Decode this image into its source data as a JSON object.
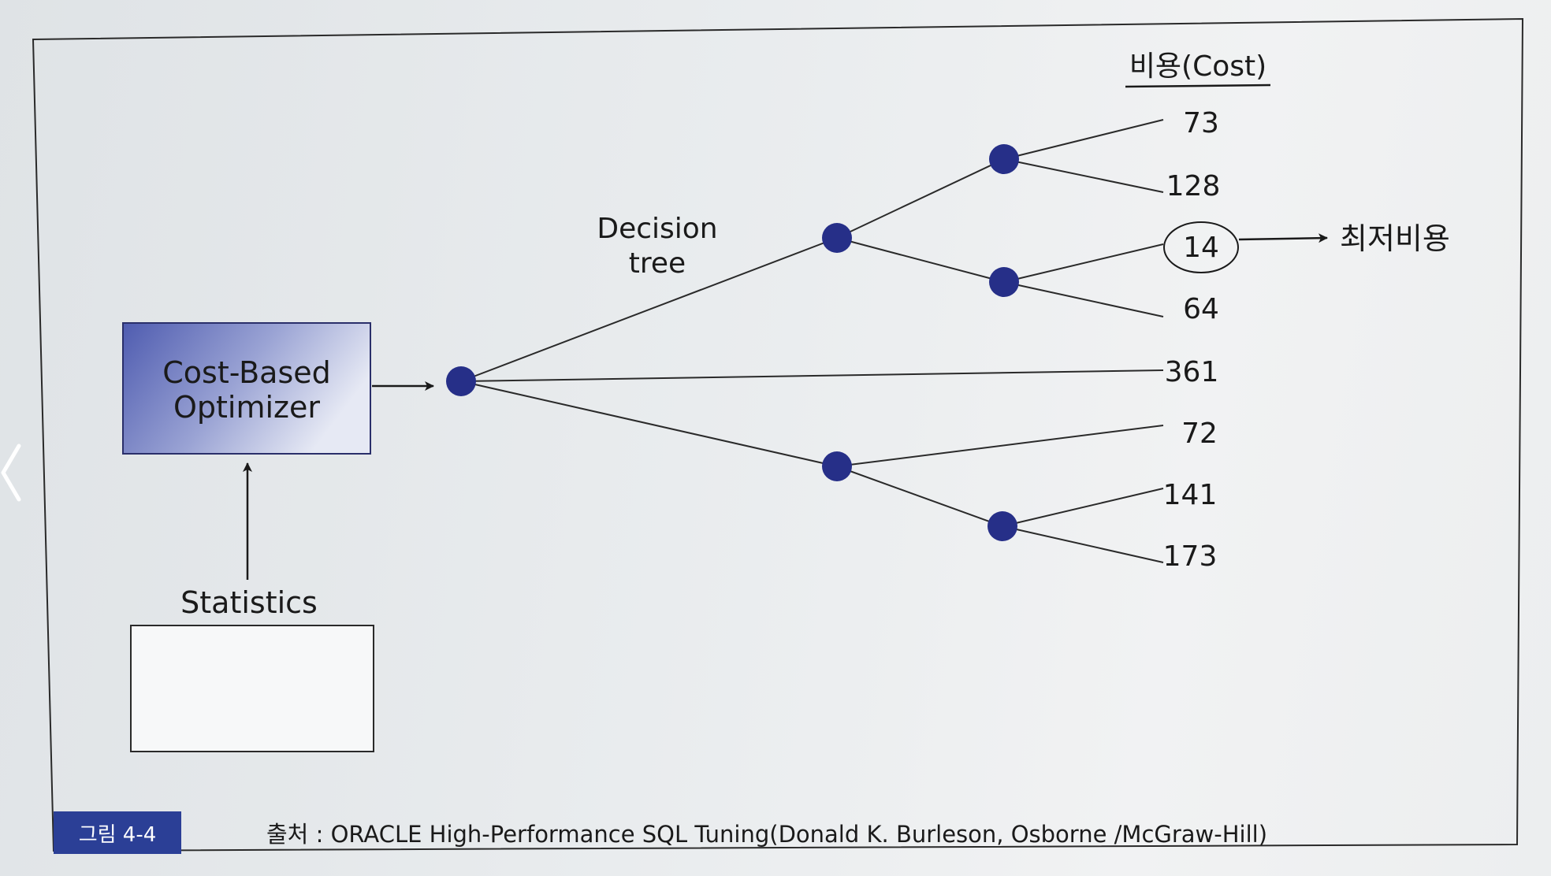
{
  "diagram": {
    "optimizer_line1": "Cost-Based",
    "optimizer_line2": "Optimizer",
    "statistics_label": "Statistics",
    "decision_line1": "Decision",
    "decision_line2": "tree",
    "cost_header": "비용(Cost)",
    "costs": [
      "73",
      "128",
      "14",
      "64",
      "361",
      "72",
      "141",
      "173"
    ],
    "lowest_cost_label": "최저비용",
    "node_color": "#262f88",
    "box_color": "#5a66b4"
  },
  "caption": {
    "badge": "그림 4-4",
    "text": "출처 : ORACLE High-Performance SQL Tuning(Donald K. Burleson, Osborne /McGraw-Hill)"
  }
}
